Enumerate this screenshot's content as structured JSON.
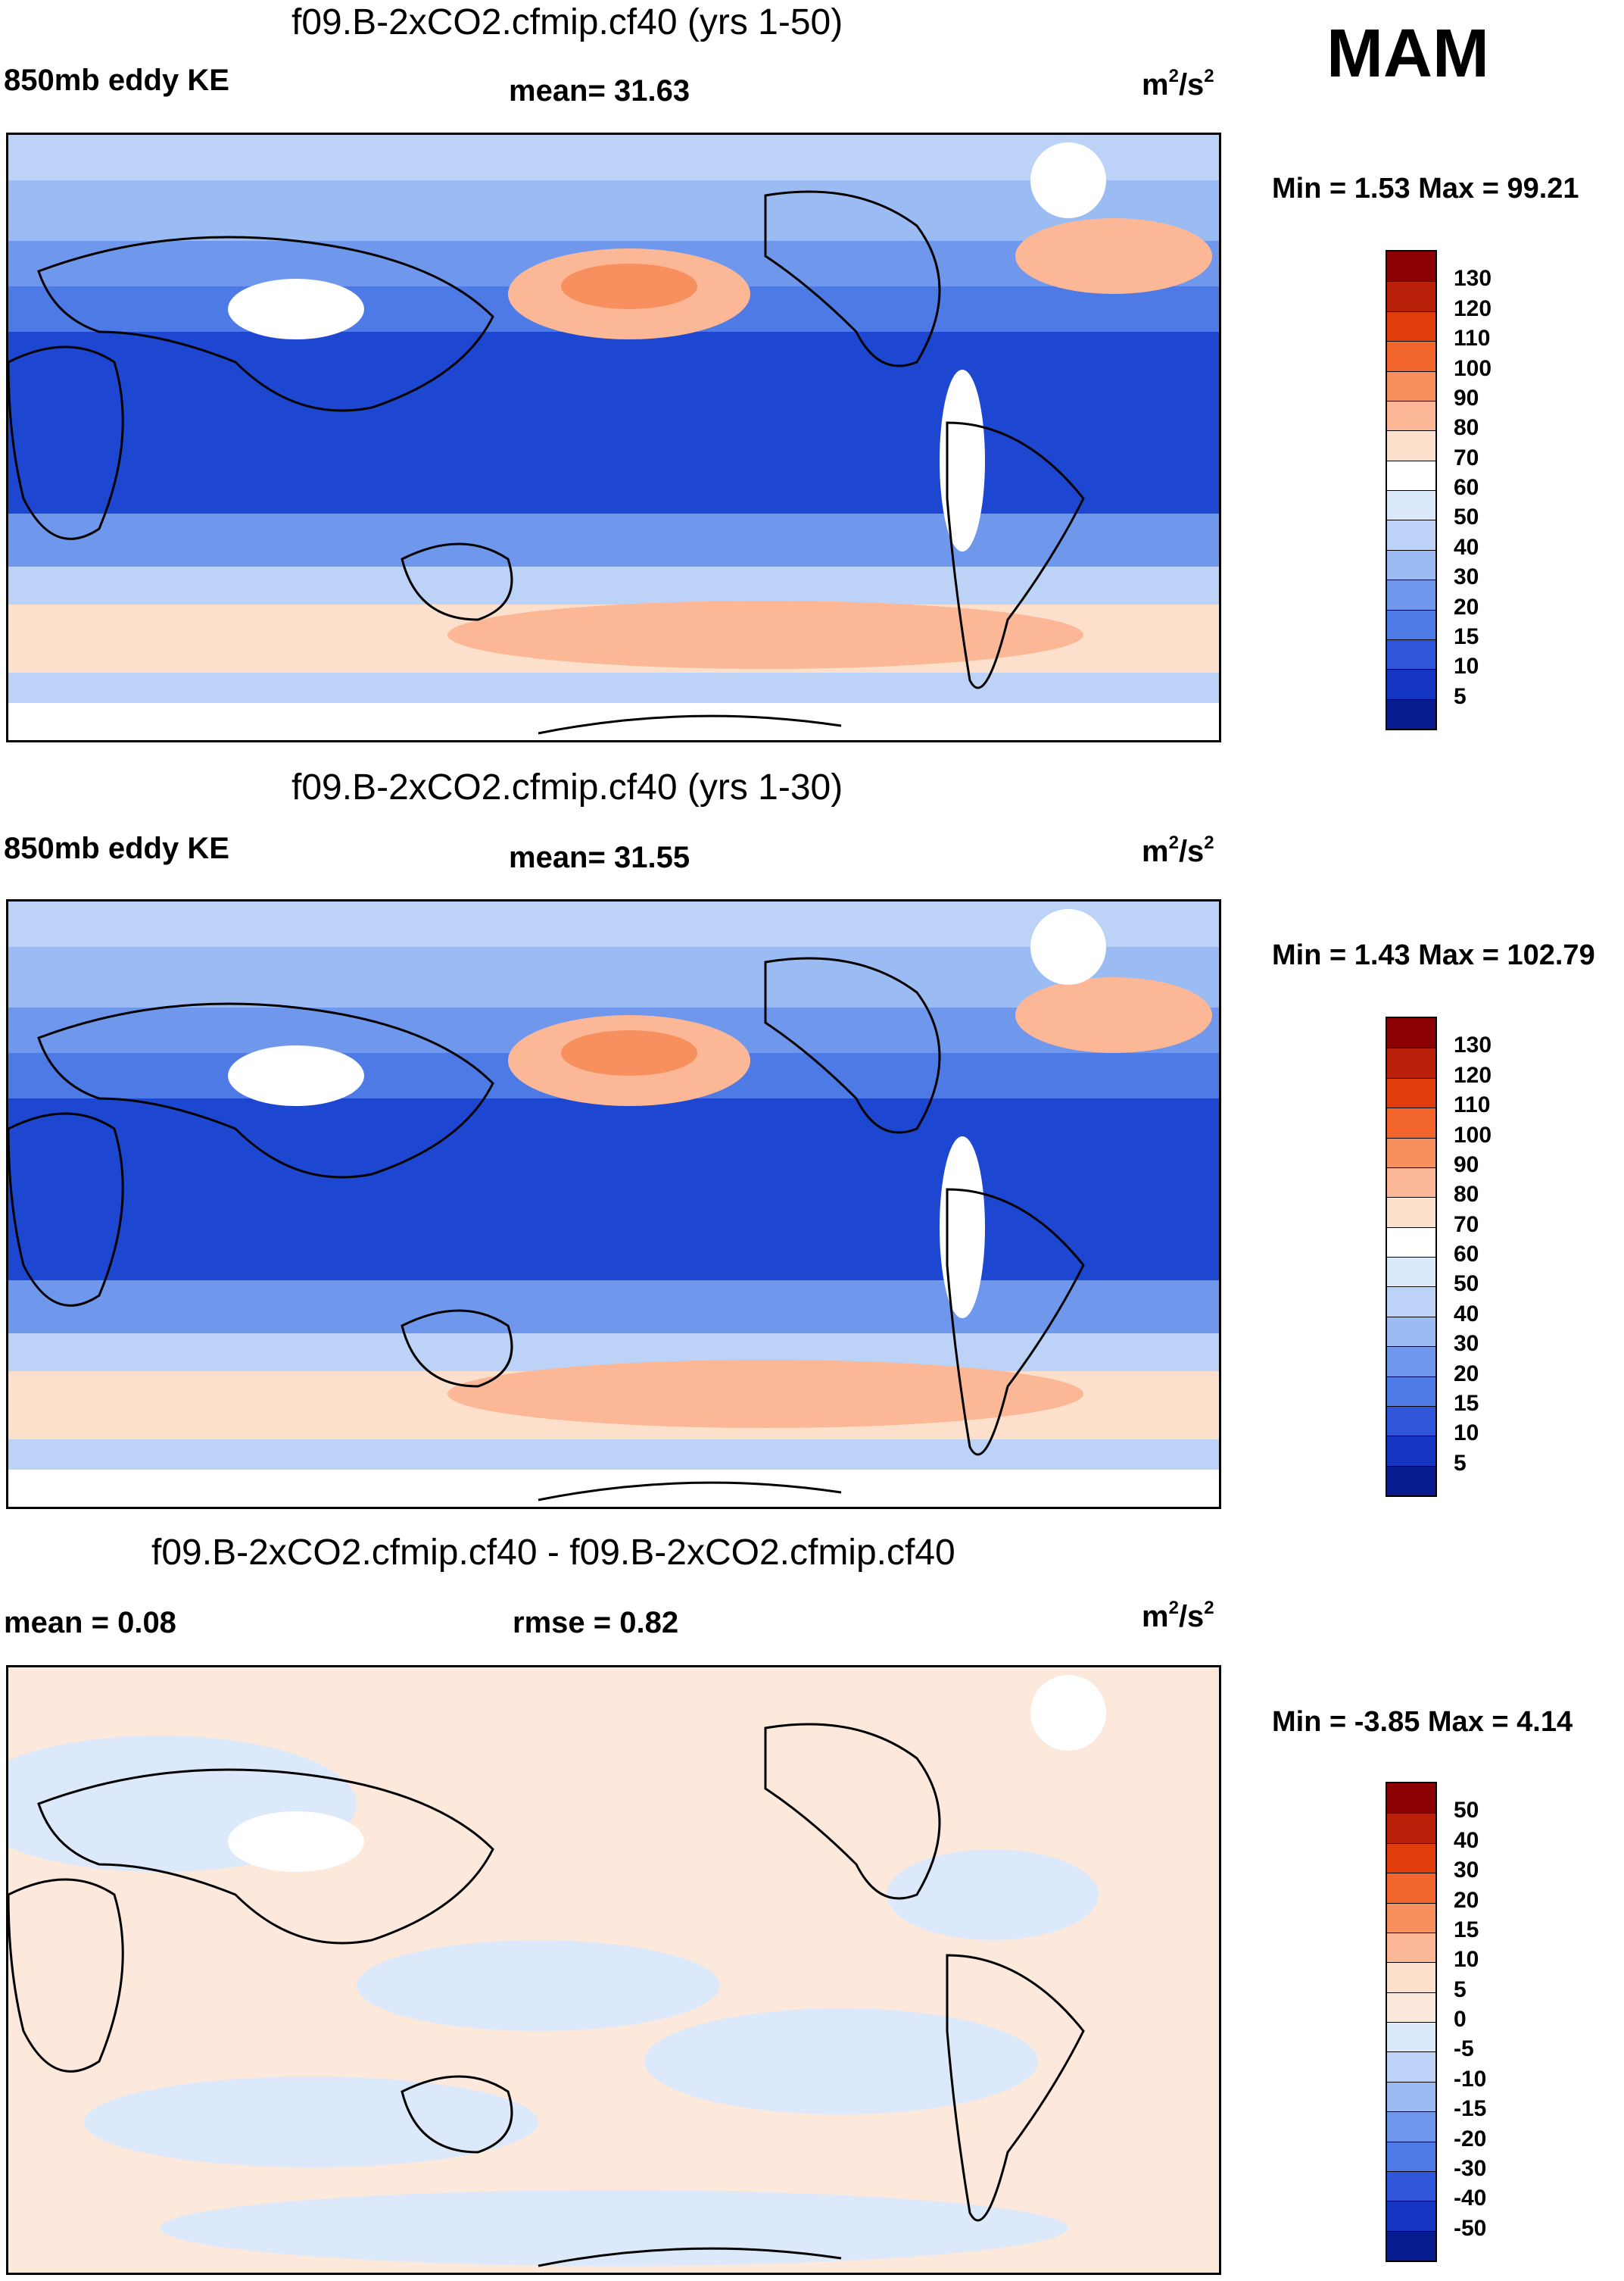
{
  "season": "MAM",
  "panels": [
    {
      "title": "f09.B-2xCO2.cfmip.cf40 (yrs 1-50)",
      "left_label": "850mb eddy KE",
      "center_label": "mean=  31.63",
      "units": "m",
      "units_sup": "2",
      "units_tail": "/s",
      "units_sup2": "2",
      "minmax": "Min =   1.53 Max =  99.21",
      "colorbar": {
        "labels": [
          "130",
          "120",
          "110",
          "100",
          "90",
          "80",
          "70",
          "60",
          "50",
          "40",
          "30",
          "20",
          "15",
          "10",
          "5"
        ],
        "colors": [
          "#8b0000",
          "#b8200a",
          "#e03c0c",
          "#f2662e",
          "#f7905e",
          "#fbb796",
          "#fde0cc",
          "#ffffff",
          "#dbe9fb",
          "#bcd3f7",
          "#9bbcf3",
          "#6f98ec",
          "#4e7ae6",
          "#2f56d8",
          "#1335c2",
          "#071c8e"
        ]
      }
    },
    {
      "title": "f09.B-2xCO2.cfmip.cf40 (yrs 1-30)",
      "left_label": "850mb eddy KE",
      "center_label": "mean=  31.55",
      "units": "m",
      "units_sup": "2",
      "units_tail": "/s",
      "units_sup2": "2",
      "minmax": "Min =   1.43 Max = 102.79",
      "colorbar": {
        "labels": [
          "130",
          "120",
          "110",
          "100",
          "90",
          "80",
          "70",
          "60",
          "50",
          "40",
          "30",
          "20",
          "15",
          "10",
          "5"
        ],
        "colors": [
          "#8b0000",
          "#b8200a",
          "#e03c0c",
          "#f2662e",
          "#f7905e",
          "#fbb796",
          "#fde0cc",
          "#ffffff",
          "#dbe9fb",
          "#bcd3f7",
          "#9bbcf3",
          "#6f98ec",
          "#4e7ae6",
          "#2f56d8",
          "#1335c2",
          "#071c8e"
        ]
      }
    },
    {
      "title": "f09.B-2xCO2.cfmip.cf40 - f09.B-2xCO2.cfmip.cf40",
      "left_label": "mean =   0.08",
      "center_label": "rmse =   0.82",
      "units": "m",
      "units_sup": "2",
      "units_tail": "/s",
      "units_sup2": "2",
      "minmax": "Min =  -3.85 Max =   4.14",
      "colorbar": {
        "labels": [
          "50",
          "40",
          "30",
          "20",
          "15",
          "10",
          "5",
          "0",
          "-5",
          "-10",
          "-15",
          "-20",
          "-30",
          "-40",
          "-50"
        ],
        "colors": [
          "#8b0000",
          "#b8200a",
          "#e03c0c",
          "#f2662e",
          "#f7905e",
          "#fbb796",
          "#fde0cc",
          "#fde9dc",
          "#dbe9fb",
          "#bcd3f7",
          "#9bbcf3",
          "#6f98ec",
          "#4e7ae6",
          "#2f56d8",
          "#1335c2",
          "#071c8e"
        ]
      }
    }
  ]
}
